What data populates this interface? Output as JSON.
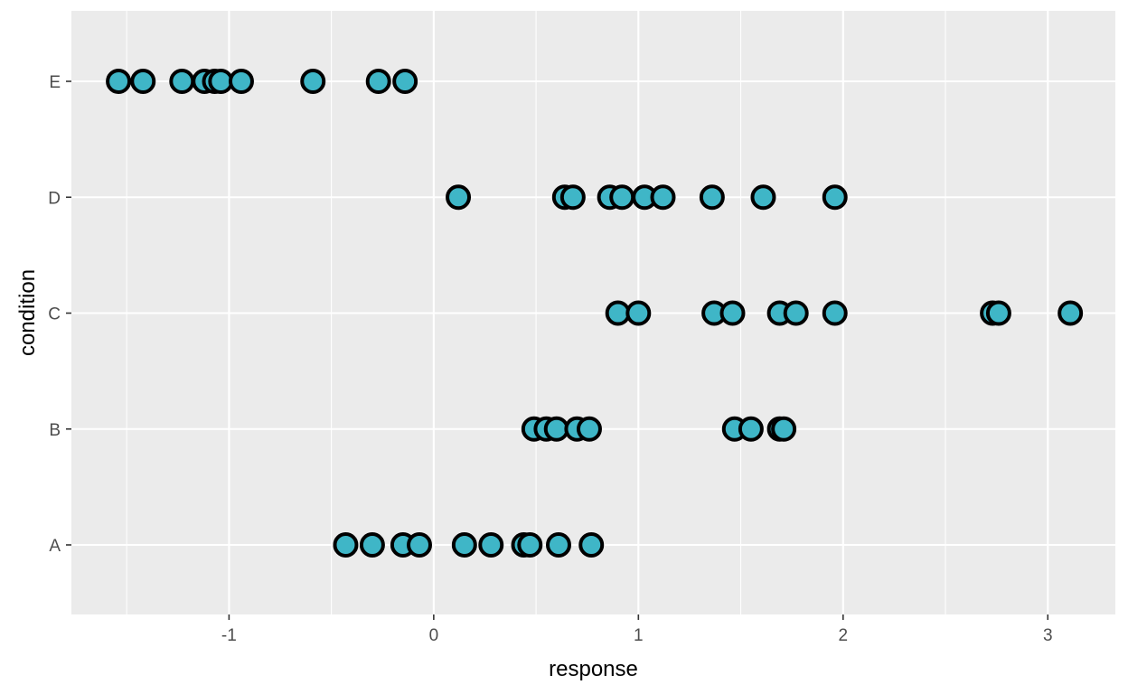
{
  "chart_data": {
    "type": "scatter",
    "title": "",
    "xlabel": "response",
    "ylabel": "condition",
    "xlim": [
      -1.77,
      3.33
    ],
    "x_major_ticks": [
      -1,
      0,
      1,
      2,
      3
    ],
    "x_tick_labels": [
      "-1",
      "0",
      "1",
      "2",
      "3"
    ],
    "x_minor_ticks": [
      -1.5,
      -0.5,
      0.5,
      1.5,
      2.5
    ],
    "categories": [
      "A",
      "B",
      "C",
      "D",
      "E"
    ],
    "grid": true,
    "legend": "none",
    "point_fill": "#3FB6C7",
    "point_stroke": "#000000",
    "panel_background": "#EBEBEB",
    "series": [
      {
        "category": "A",
        "x": [
          -0.43,
          -0.3,
          -0.15,
          -0.07,
          0.15,
          0.28,
          0.44,
          0.47,
          0.61,
          0.77
        ]
      },
      {
        "category": "B",
        "x": [
          0.49,
          0.55,
          0.6,
          0.7,
          0.76,
          1.47,
          1.55,
          1.69,
          1.71
        ]
      },
      {
        "category": "C",
        "x": [
          0.9,
          1.0,
          1.37,
          1.46,
          1.69,
          1.77,
          1.96,
          2.73,
          2.76,
          3.11
        ]
      },
      {
        "category": "D",
        "x": [
          0.12,
          0.64,
          0.68,
          0.86,
          0.92,
          1.03,
          1.12,
          1.36,
          1.61,
          1.96
        ]
      },
      {
        "category": "E",
        "x": [
          -1.54,
          -1.42,
          -1.23,
          -1.12,
          -1.07,
          -1.04,
          -0.94,
          -0.59,
          -0.27,
          -0.14
        ]
      }
    ]
  }
}
